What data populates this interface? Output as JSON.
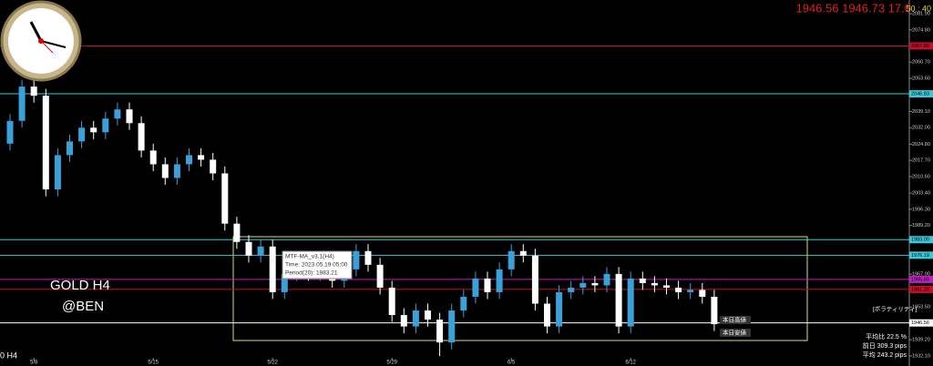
{
  "chart_data": {
    "type": "candlestick",
    "categories": [
      null,
      null,
      "5/8",
      null,
      null,
      null,
      null,
      null,
      null,
      null,
      null,
      null,
      "5/15",
      null,
      null,
      null,
      null,
      null,
      null,
      null,
      null,
      null,
      "5/22",
      null,
      null,
      null,
      null,
      null,
      null,
      null,
      null,
      null,
      "5/29",
      null,
      null,
      null,
      null,
      null,
      null,
      null,
      null,
      null,
      "6/5",
      null,
      null,
      null,
      null,
      null,
      null,
      null,
      null,
      null,
      "6/12",
      null,
      null,
      null,
      null,
      null,
      null,
      null
    ],
    "open": [
      2025,
      2035,
      2050,
      2046,
      2005,
      2020,
      2026,
      2032,
      2030,
      2036,
      2040,
      2034,
      2022,
      2016,
      2010,
      2016,
      2020,
      2018,
      2012,
      1990,
      1982,
      1976,
      1980,
      1960,
      1968,
      1975,
      1968,
      1972,
      1965,
      1970,
      1978,
      1972,
      1962,
      1950,
      1945,
      1952,
      1948,
      1938,
      1952,
      1958,
      1966,
      1960,
      1970,
      1978,
      1976,
      1955,
      1945,
      1960,
      1962,
      1964,
      1963,
      1968,
      1945,
      1966,
      1964,
      1963,
      1962,
      1960,
      1961,
      1958
    ],
    "high": [
      2038,
      2053,
      2053,
      2049,
      2023,
      2029,
      2035,
      2035,
      2039,
      2043,
      2043,
      2037,
      2025,
      2019,
      2019,
      2023,
      2023,
      2021,
      2015,
      1993,
      1985,
      1983,
      1983,
      1971,
      1978,
      1978,
      1975,
      1975,
      1973,
      1981,
      1981,
      1975,
      1965,
      1953,
      1955,
      1955,
      1951,
      1955,
      1961,
      1969,
      1969,
      1973,
      1981,
      1981,
      1979,
      1958,
      1963,
      1965,
      1967,
      1967,
      1971,
      1971,
      1969,
      1969,
      1967,
      1966,
      1965,
      1964,
      1964,
      1961
    ],
    "low": [
      2022,
      2032,
      2043,
      2002,
      2002,
      2017,
      2023,
      2027,
      2027,
      2033,
      2031,
      2019,
      2013,
      2007,
      2007,
      2013,
      2015,
      2009,
      1987,
      1979,
      1973,
      1973,
      1957,
      1957,
      1965,
      1965,
      1965,
      1962,
      1962,
      1967,
      1969,
      1959,
      1947,
      1942,
      1942,
      1945,
      1932,
      1935,
      1949,
      1955,
      1957,
      1957,
      1967,
      1973,
      1952,
      1942,
      1942,
      1957,
      1959,
      1960,
      1960,
      1942,
      1942,
      1961,
      1960,
      1959,
      1957,
      1957,
      1955,
      1943
    ],
    "close": [
      2035,
      2050,
      2046,
      2005,
      2020,
      2026,
      2032,
      2030,
      2036,
      2040,
      2034,
      2022,
      2016,
      2010,
      2016,
      2020,
      2018,
      2012,
      1990,
      1982,
      1976,
      1980,
      1960,
      1968,
      1975,
      1968,
      1972,
      1965,
      1970,
      1978,
      1972,
      1962,
      1950,
      1945,
      1952,
      1948,
      1938,
      1952,
      1958,
      1966,
      1960,
      1970,
      1978,
      1976,
      1955,
      1945,
      1960,
      1962,
      1964,
      1963,
      1968,
      1945,
      1966,
      1964,
      1963,
      1962,
      1960,
      1961,
      1958,
      1946
    ],
    "up_color": "#3aa0d8",
    "down_color": "#ffffff",
    "ylim": [
      1927.7,
      2087.9
    ],
    "yticks": [
      {
        "value": 2081.9,
        "label": "2081.90"
      },
      {
        "value": 2074.8,
        "label": "2074.80"
      },
      {
        "value": 2060.7,
        "label": "2060.70"
      },
      {
        "value": 2053.6,
        "label": "2053.60"
      },
      {
        "value": 2039.1,
        "label": "2039.10"
      },
      {
        "value": 2032,
        "label": "2032.00"
      },
      {
        "value": 2024.8,
        "label": "2024.80"
      },
      {
        "value": 2017.7,
        "label": "2017.70"
      },
      {
        "value": 2010.6,
        "label": "2010.60"
      },
      {
        "value": 2003.4,
        "label": "2003.40"
      },
      {
        "value": 1996.3,
        "label": "1996.30"
      },
      {
        "value": 1989.2,
        "label": "1989.20"
      },
      {
        "value": 1967.9,
        "label": "1967.90"
      },
      {
        "value": 1953.5,
        "label": "1953.50"
      },
      {
        "value": 1939.2,
        "label": "1939.20"
      },
      {
        "value": 1932.1,
        "label": "1932.10"
      }
    ],
    "levels": [
      {
        "value": 2067.8,
        "label": "2067.80",
        "color": "#c0102a"
      },
      {
        "value": 2046.83,
        "label": "2046.83",
        "color": "#3cc8d8"
      },
      {
        "value": 1983,
        "label": "1983.00",
        "color": "#3cc8d8"
      },
      {
        "value": 1976.19,
        "label": "1976.19",
        "color": "#3cc8d8"
      },
      {
        "value": 1965.6,
        "label": "1965.60",
        "color": "#c020c0"
      },
      {
        "value": 1961.2,
        "label": "1961.20",
        "color": "#c0102a"
      },
      {
        "value": 1946.56,
        "label": "1946.56",
        "color": "#ffffff"
      }
    ]
  },
  "overlay": {
    "symbol": "GOLD H4",
    "author": "@BEN",
    "quote": "1946.56  1946.73  17.0",
    "spread": "50 : 40",
    "timeframe": "0 H4",
    "tooltip": [
      "MTF-MA_v3.1(H4)",
      "Time: 2023.05.19 05:00",
      "Period(20): 1983.21"
    ],
    "high_label": "本日高値",
    "low_label": "本日安値",
    "panel": [
      "[ボラティリティ]",
      "平均比 22.5 %",
      "前日 309.3 pips",
      "平均 243.2 pips"
    ]
  }
}
